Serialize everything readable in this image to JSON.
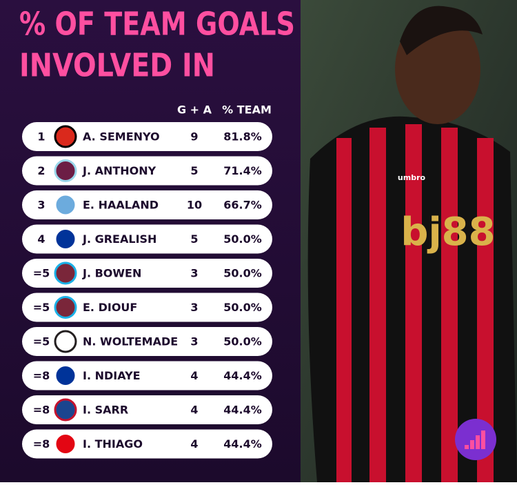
{
  "title": {
    "lines": [
      "% OF TEAM GOALS",
      "INVOLVED IN"
    ]
  },
  "table": {
    "headers": [
      "G + A",
      "% TEAM"
    ],
    "rows": [
      {
        "rank": "1",
        "player": "A. SEMENYO",
        "ga": 9,
        "pct": "81.8%"
      },
      {
        "rank": "2",
        "player": "J. ANTHONY",
        "ga": 5,
        "pct": "71.4%"
      },
      {
        "rank": "3",
        "player": "E. HAALAND",
        "ga": 10,
        "pct": "66.7%"
      },
      {
        "rank": "4",
        "player": "J. GREALISH",
        "ga": 5,
        "pct": "50.0%"
      },
      {
        "rank": "=5",
        "player": "J. BOWEN",
        "ga": 3,
        "pct": "50.0%"
      },
      {
        "rank": "=5",
        "player": "E. DIOUF",
        "ga": 3,
        "pct": "50.0%"
      },
      {
        "rank": "=5",
        "player": "N. WOLTEMADE",
        "ga": 3,
        "pct": "50.0%"
      },
      {
        "rank": "=8",
        "player": "I. NDIAYE",
        "ga": 4,
        "pct": "44.4%"
      },
      {
        "rank": "=8",
        "player": "I. SARR",
        "ga": 4,
        "pct": "44.4%"
      },
      {
        "rank": "=8",
        "player": "I. THIAGO",
        "ga": 4,
        "pct": "44.4%"
      }
    ]
  },
  "photo": {
    "sponsor": "bj88",
    "kit_maker": "umbro"
  }
}
